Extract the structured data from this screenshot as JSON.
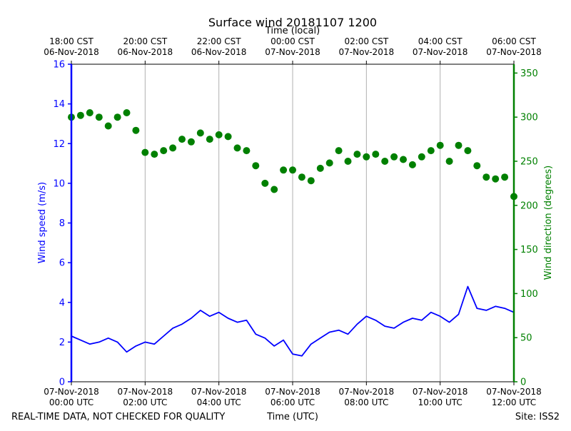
{
  "chart_data": {
    "type": "line",
    "title": "Surface wind 20181107 1200",
    "top_xlabel": "Time (local)",
    "xlabel": "Time (UTC)",
    "ylabel_left": "Wind speed (m/s)",
    "ylabel_right": "Wind direction (degrees)",
    "footer_left": "REAL-TIME DATA, NOT CHECKED FOR QUALITY",
    "footer_right": "Site: ISS2",
    "x_unit": "hours since 07-Nov-2018 00:00 UTC",
    "xlim": [
      0,
      12
    ],
    "ylim_left": [
      0,
      16
    ],
    "ylim_right": [
      0,
      360
    ],
    "grid": true,
    "colors": {
      "speed": "#0000ff",
      "direction": "#008000",
      "grid": "#b0b0b0",
      "axis": "#000000"
    },
    "bottom_ticks": [
      {
        "x": 0,
        "line1": "07-Nov-2018",
        "line2": "00:00 UTC"
      },
      {
        "x": 2,
        "line1": "07-Nov-2018",
        "line2": "02:00 UTC"
      },
      {
        "x": 4,
        "line1": "07-Nov-2018",
        "line2": "04:00 UTC"
      },
      {
        "x": 6,
        "line1": "07-Nov-2018",
        "line2": "06:00 UTC"
      },
      {
        "x": 8,
        "line1": "07-Nov-2018",
        "line2": "08:00 UTC"
      },
      {
        "x": 10,
        "line1": "07-Nov-2018",
        "line2": "10:00 UTC"
      },
      {
        "x": 12,
        "line1": "07-Nov-2018",
        "line2": "12:00 UTC"
      }
    ],
    "top_ticks": [
      {
        "x": 0,
        "line1": "18:00 CST",
        "line2": "06-Nov-2018"
      },
      {
        "x": 2,
        "line1": "20:00 CST",
        "line2": "06-Nov-2018"
      },
      {
        "x": 4,
        "line1": "22:00 CST",
        "line2": "06-Nov-2018"
      },
      {
        "x": 6,
        "line1": "00:00 CST",
        "line2": "07-Nov-2018"
      },
      {
        "x": 8,
        "line1": "02:00 CST",
        "line2": "07-Nov-2018"
      },
      {
        "x": 10,
        "line1": "04:00 CST",
        "line2": "07-Nov-2018"
      },
      {
        "x": 12,
        "line1": "06:00 CST",
        "line2": "07-Nov-2018"
      }
    ],
    "left_ticks": [
      0,
      2,
      4,
      6,
      8,
      10,
      12,
      14,
      16
    ],
    "right_ticks": [
      0,
      50,
      100,
      150,
      200,
      250,
      300,
      350
    ],
    "series": [
      {
        "name": "Wind speed",
        "axis": "left",
        "style": "line",
        "x": [
          0,
          0.25,
          0.5,
          0.75,
          1.0,
          1.25,
          1.5,
          1.75,
          2.0,
          2.25,
          2.5,
          2.75,
          3.0,
          3.25,
          3.5,
          3.75,
          4.0,
          4.25,
          4.5,
          4.75,
          5.0,
          5.25,
          5.5,
          5.75,
          6.0,
          6.25,
          6.5,
          6.75,
          7.0,
          7.25,
          7.5,
          7.75,
          8.0,
          8.25,
          8.5,
          8.75,
          9.0,
          9.25,
          9.5,
          9.75,
          10.0,
          10.25,
          10.5,
          10.75,
          11.0,
          11.25,
          11.5,
          11.75,
          12.0
        ],
        "values": [
          2.3,
          2.1,
          1.9,
          2.0,
          2.2,
          2.0,
          1.5,
          1.8,
          2.0,
          1.9,
          2.3,
          2.7,
          2.9,
          3.2,
          3.6,
          3.3,
          3.5,
          3.2,
          3.0,
          3.1,
          2.4,
          2.2,
          1.8,
          2.1,
          1.4,
          1.3,
          1.9,
          2.2,
          2.5,
          2.6,
          2.4,
          2.9,
          3.3,
          3.1,
          2.8,
          2.7,
          3.0,
          3.2,
          3.1,
          3.5,
          3.3,
          3.0,
          3.4,
          4.8,
          3.7,
          3.6,
          3.8,
          3.7,
          3.5
        ]
      },
      {
        "name": "Wind direction",
        "axis": "right",
        "style": "markers",
        "x": [
          0,
          0.25,
          0.5,
          0.75,
          1.0,
          1.25,
          1.5,
          1.75,
          2.0,
          2.25,
          2.5,
          2.75,
          3.0,
          3.25,
          3.5,
          3.75,
          4.0,
          4.25,
          4.5,
          4.75,
          5.0,
          5.25,
          5.5,
          5.75,
          6.0,
          6.25,
          6.5,
          6.75,
          7.0,
          7.25,
          7.5,
          7.75,
          8.0,
          8.25,
          8.5,
          8.75,
          9.0,
          9.25,
          9.5,
          9.75,
          10.0,
          10.25,
          10.5,
          10.75,
          11.0,
          11.25,
          11.5,
          11.75,
          12.0
        ],
        "values": [
          300,
          302,
          305,
          300,
          290,
          300,
          305,
          285,
          260,
          258,
          262,
          265,
          275,
          272,
          282,
          275,
          280,
          278,
          265,
          262,
          245,
          225,
          218,
          240,
          240,
          232,
          228,
          242,
          248,
          262,
          250,
          258,
          255,
          258,
          250,
          255,
          252,
          246,
          255,
          262,
          268,
          250,
          268,
          262,
          245,
          232,
          230,
          232,
          210
        ]
      }
    ]
  }
}
